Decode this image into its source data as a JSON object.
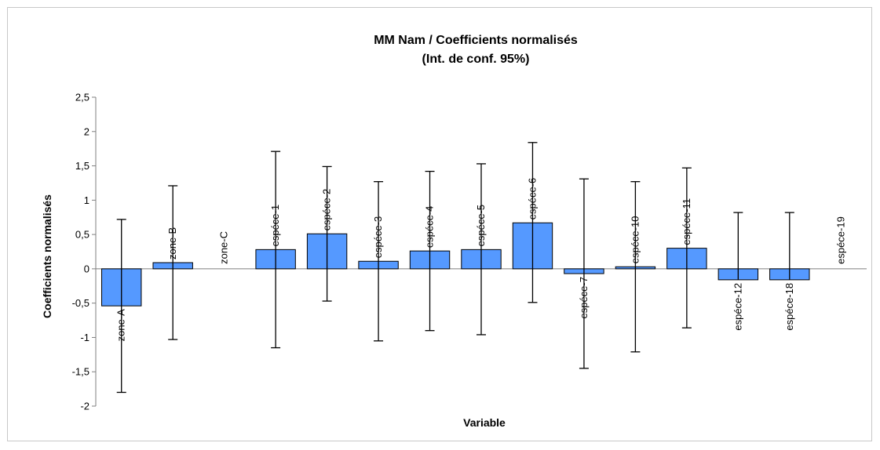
{
  "chart_data": {
    "type": "bar",
    "title_line1": "MM Nam / Coefficients normalisés",
    "title_line2": "(Int. de conf. 95%)",
    "xlabel": "Variable",
    "ylabel": "Coefficients normalisés",
    "ylim": [
      -2,
      2.5
    ],
    "yticks": [
      -2,
      -1.5,
      -1,
      -0.5,
      0,
      0.5,
      1,
      1.5,
      2,
      2.5
    ],
    "ytick_labels": [
      "-2",
      "-1,5",
      "-1",
      "-0,5",
      "0",
      "0,5",
      "1",
      "1,5",
      "2",
      "2,5"
    ],
    "grid": false,
    "legend": "none",
    "bar_color": "#5599ff",
    "categories": [
      "zone-A",
      "zone-B",
      "zone-C",
      "espéce-1",
      "espéce-2",
      "espéce-3",
      "espéce-4",
      "espéce-5",
      "espéce-6",
      "espéce-7",
      "espéce-10",
      "espéce-11",
      "espéce-12",
      "espéce-18",
      "espéce-19"
    ],
    "values": [
      -0.54,
      0.09,
      0,
      0.28,
      0.51,
      0.11,
      0.26,
      0.28,
      0.67,
      -0.07,
      0.03,
      0.3,
      -0.16,
      -0.16,
      0
    ],
    "err_low": [
      -1.8,
      -1.03,
      null,
      -1.15,
      -0.47,
      -1.05,
      -0.9,
      -0.96,
      -0.49,
      -1.45,
      -1.21,
      -0.86,
      null,
      null,
      null
    ],
    "err_high": [
      0.72,
      1.21,
      null,
      1.71,
      1.49,
      1.27,
      1.42,
      1.53,
      1.84,
      1.31,
      1.27,
      1.47,
      0.82,
      0.82,
      null
    ]
  }
}
